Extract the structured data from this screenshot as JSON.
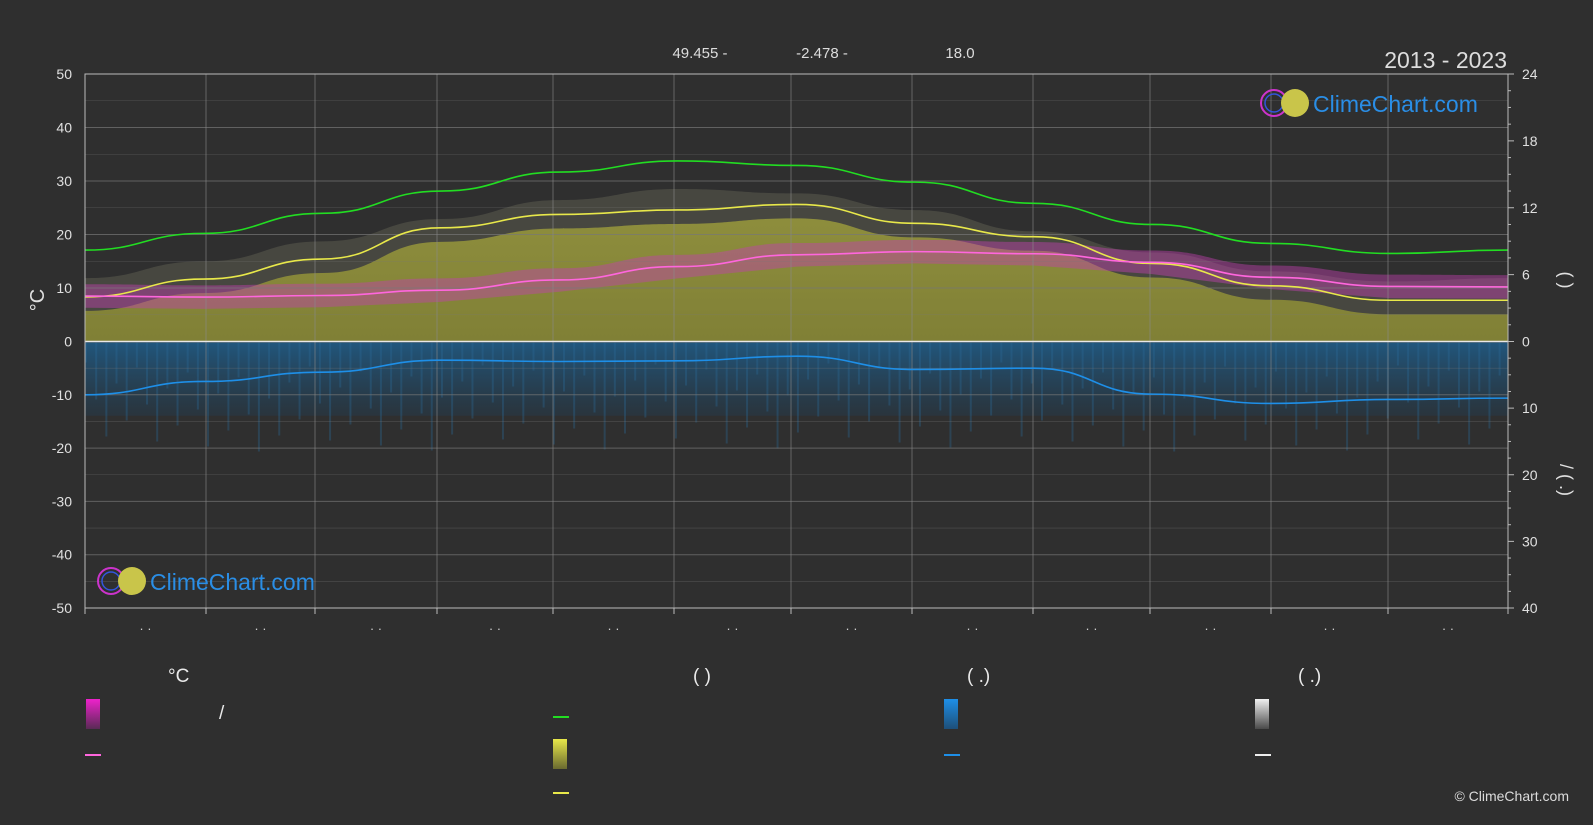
{
  "header": {
    "coords": [
      "49.455 -",
      "-2.478 -",
      "18.0"
    ],
    "years": "2013 - 2023"
  },
  "brand": {
    "name": "ClimeChart.com",
    "copyright": "© ClimeChart.com"
  },
  "chart_data": {
    "type": "area",
    "title": "",
    "ylabel_left": "°C",
    "right_axis_top_label": "(   )",
    "right_axis_bottom_label": "/   (   .)",
    "ylim_left": [
      -50,
      50
    ],
    "yticks_left": [
      50,
      40,
      30,
      20,
      10,
      0,
      -10,
      -20,
      -30,
      -40,
      -50
    ],
    "yticks_right_top": [
      24,
      18,
      12,
      6,
      0
    ],
    "yticks_right_bottom": [
      10,
      20,
      30,
      40
    ],
    "x_tick_labels": [
      "· ·",
      "· ·",
      "· ·",
      "· ·",
      "· ·",
      "· ·",
      "· ·",
      "· ·",
      "· ·",
      "· ·",
      "· ·",
      "· ·"
    ],
    "grid": true,
    "series": [
      {
        "key": "daylight",
        "color": "#22dd22",
        "values": [
          8.2,
          9.7,
          11.5,
          13.5,
          15.2,
          16.2,
          15.8,
          14.3,
          12.4,
          10.5,
          8.8,
          7.9,
          8.2
        ]
      },
      {
        "key": "sunshine",
        "color": "#e8e84a",
        "values": [
          4.0,
          5.6,
          7.4,
          10.2,
          11.4,
          11.8,
          12.3,
          10.6,
          9.4,
          7.0,
          5.0,
          3.7,
          3.7
        ]
      },
      {
        "key": "mean_temp",
        "color": "#ff66dd",
        "values": [
          8.5,
          8.3,
          8.6,
          9.6,
          11.5,
          14.0,
          16.2,
          16.8,
          16.4,
          14.8,
          12.0,
          10.3,
          10.2
        ]
      },
      {
        "key": "precipitation",
        "color": "#1e8fe8",
        "values": [
          8.0,
          6.0,
          4.6,
          2.8,
          3.0,
          2.9,
          2.2,
          4.2,
          4.0,
          7.9,
          9.3,
          8.7,
          8.5
        ]
      }
    ]
  },
  "legend": {
    "headers": [
      "°C",
      "(           )",
      "(    .)",
      "(    .)"
    ],
    "row_text": [
      "/"
    ],
    "colors": {
      "temp_range": "#ee22cc",
      "mean_temp": "#ff66dd",
      "daylight": "#22dd22",
      "sunshine": "#e8e84a",
      "rain": "#1e8fe8",
      "snow": "#e0e0e0"
    }
  }
}
